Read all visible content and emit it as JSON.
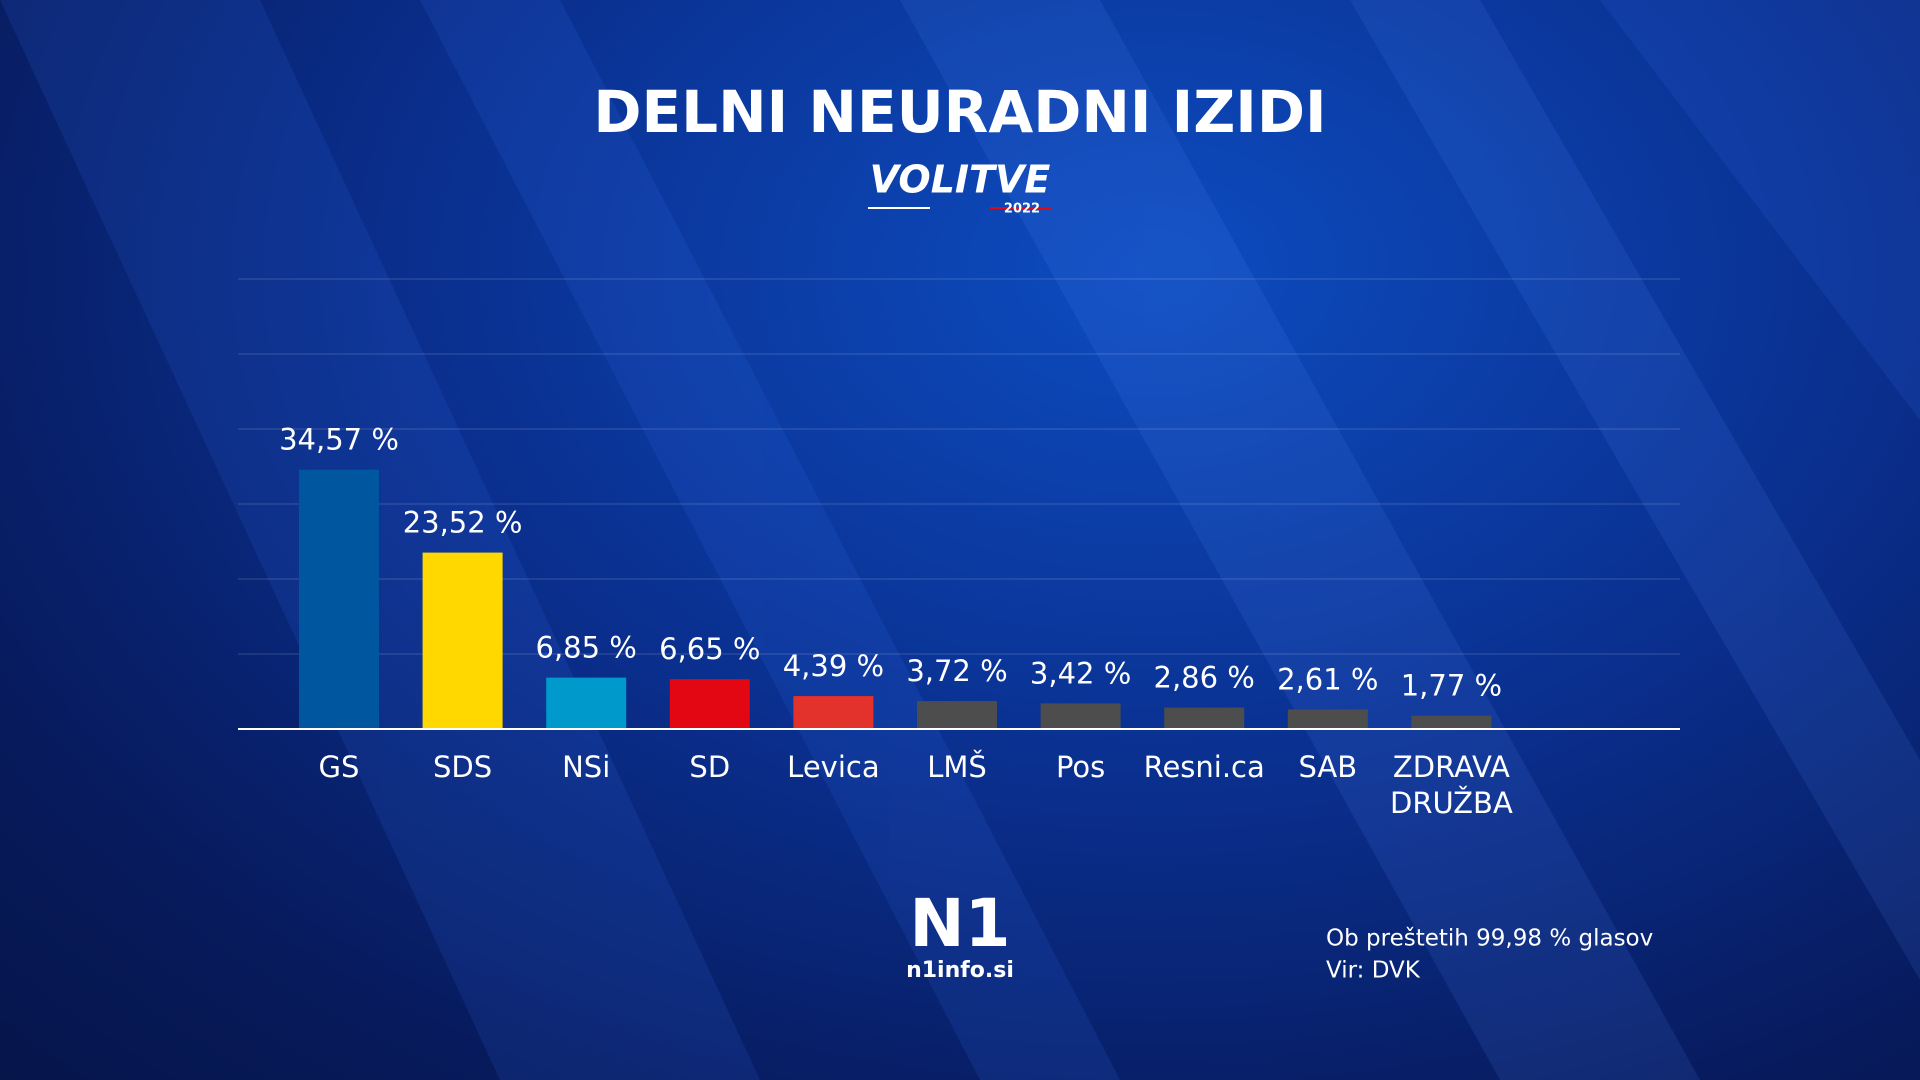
{
  "chart_data": {
    "type": "bar",
    "title": "DELNI NEURADNI IZIDI",
    "categories": [
      "GS",
      "SDS",
      "NSi",
      "SD",
      "Levica",
      "LMŠ",
      "Pos",
      "Resni.ca",
      "SAB",
      "ZDRAVA DRUŽBA"
    ],
    "values": [
      34.57,
      23.52,
      6.85,
      6.65,
      4.39,
      3.72,
      3.42,
      2.86,
      2.61,
      1.77
    ],
    "value_labels": [
      "34,57 %",
      "23,52 %",
      "6,85 %",
      "6,65 %",
      "4,39 %",
      "3,72 %",
      "3,42 %",
      "2,86 %",
      "2,61 %",
      "1,77 %"
    ],
    "colors": [
      "#0057a0",
      "#ffd800",
      "#0099cc",
      "#e30613",
      "#e3312b",
      "#4d4d4d",
      "#4d4d4d",
      "#4d4d4d",
      "#4d4d4d",
      "#4d4d4d"
    ],
    "ylim": [
      0,
      60
    ],
    "yticks": [
      0,
      10,
      20,
      30,
      40,
      50,
      60
    ],
    "grid": true,
    "notes": [
      "Ob preštetih 99,98 % glasov",
      "Vir: DVK"
    ]
  },
  "branding": {
    "event": "VOLITVE",
    "year": "2022",
    "logo": "N1",
    "site": "n1info.si"
  }
}
